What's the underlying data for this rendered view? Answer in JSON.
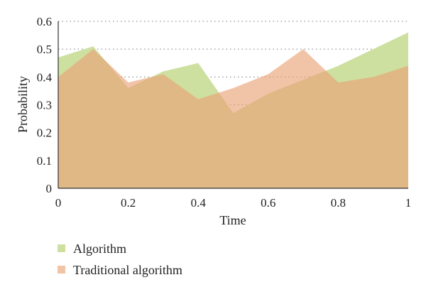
{
  "chart_data": {
    "type": "area",
    "xlabel": "Time",
    "ylabel": "Probability",
    "xlim": [
      0,
      1
    ],
    "ylim": [
      0,
      0.6
    ],
    "x_ticks": [
      "0",
      "0.2",
      "0.4",
      "0.6",
      "0.8",
      "1"
    ],
    "y_ticks": [
      "0",
      "0.1",
      "0.2",
      "0.3",
      "0.4",
      "0.5",
      "0.6"
    ],
    "grid": "horizontal-dotted",
    "legend_position": "bottom-left",
    "x": [
      0,
      0.1,
      0.2,
      0.3,
      0.4,
      0.5,
      0.6,
      0.7,
      0.8,
      0.9,
      1.0
    ],
    "series": [
      {
        "name": "Algorithm",
        "color": "#cde0a0",
        "opacity": 1.0,
        "values": [
          0.47,
          0.51,
          0.36,
          0.42,
          0.45,
          0.27,
          0.34,
          0.39,
          0.44,
          0.5,
          0.56
        ]
      },
      {
        "name": "Traditional algorithm",
        "color": "#e9a378",
        "opacity": 0.65,
        "values": [
          0.4,
          0.5,
          0.38,
          0.41,
          0.32,
          0.36,
          0.41,
          0.5,
          0.38,
          0.4,
          0.44
        ]
      }
    ]
  }
}
